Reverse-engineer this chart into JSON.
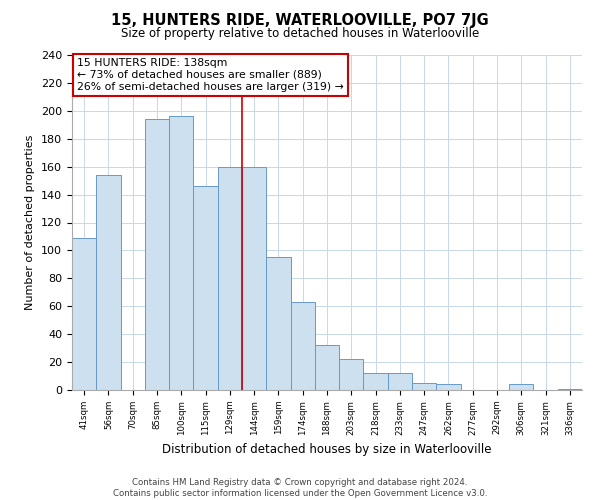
{
  "title": "15, HUNTERS RIDE, WATERLOOVILLE, PO7 7JG",
  "subtitle": "Size of property relative to detached houses in Waterlooville",
  "xlabel": "Distribution of detached houses by size in Waterlooville",
  "ylabel": "Number of detached properties",
  "bar_labels": [
    "41sqm",
    "56sqm",
    "70sqm",
    "85sqm",
    "100sqm",
    "115sqm",
    "129sqm",
    "144sqm",
    "159sqm",
    "174sqm",
    "188sqm",
    "203sqm",
    "218sqm",
    "233sqm",
    "247sqm",
    "262sqm",
    "277sqm",
    "292sqm",
    "306sqm",
    "321sqm",
    "336sqm"
  ],
  "bar_values": [
    109,
    154,
    0,
    194,
    196,
    146,
    160,
    160,
    95,
    63,
    32,
    22,
    12,
    12,
    5,
    4,
    0,
    0,
    4,
    0,
    1
  ],
  "bar_color": "#cce0f0",
  "bar_edge_color": "#6699cc",
  "annotation_text": "15 HUNTERS RIDE: 138sqm\n← 73% of detached houses are smaller (889)\n26% of semi-detached houses are larger (319) →",
  "annotation_box_color": "#ffffff",
  "annotation_border_color": "#cc0000",
  "property_line_x": 6.5,
  "ylim": [
    0,
    240
  ],
  "yticks": [
    0,
    20,
    40,
    60,
    80,
    100,
    120,
    140,
    160,
    180,
    200,
    220,
    240
  ],
  "footer_line1": "Contains HM Land Registry data © Crown copyright and database right 2024.",
  "footer_line2": "Contains public sector information licensed under the Open Government Licence v3.0.",
  "background_color": "#ffffff",
  "grid_color": "#c8d8e8"
}
